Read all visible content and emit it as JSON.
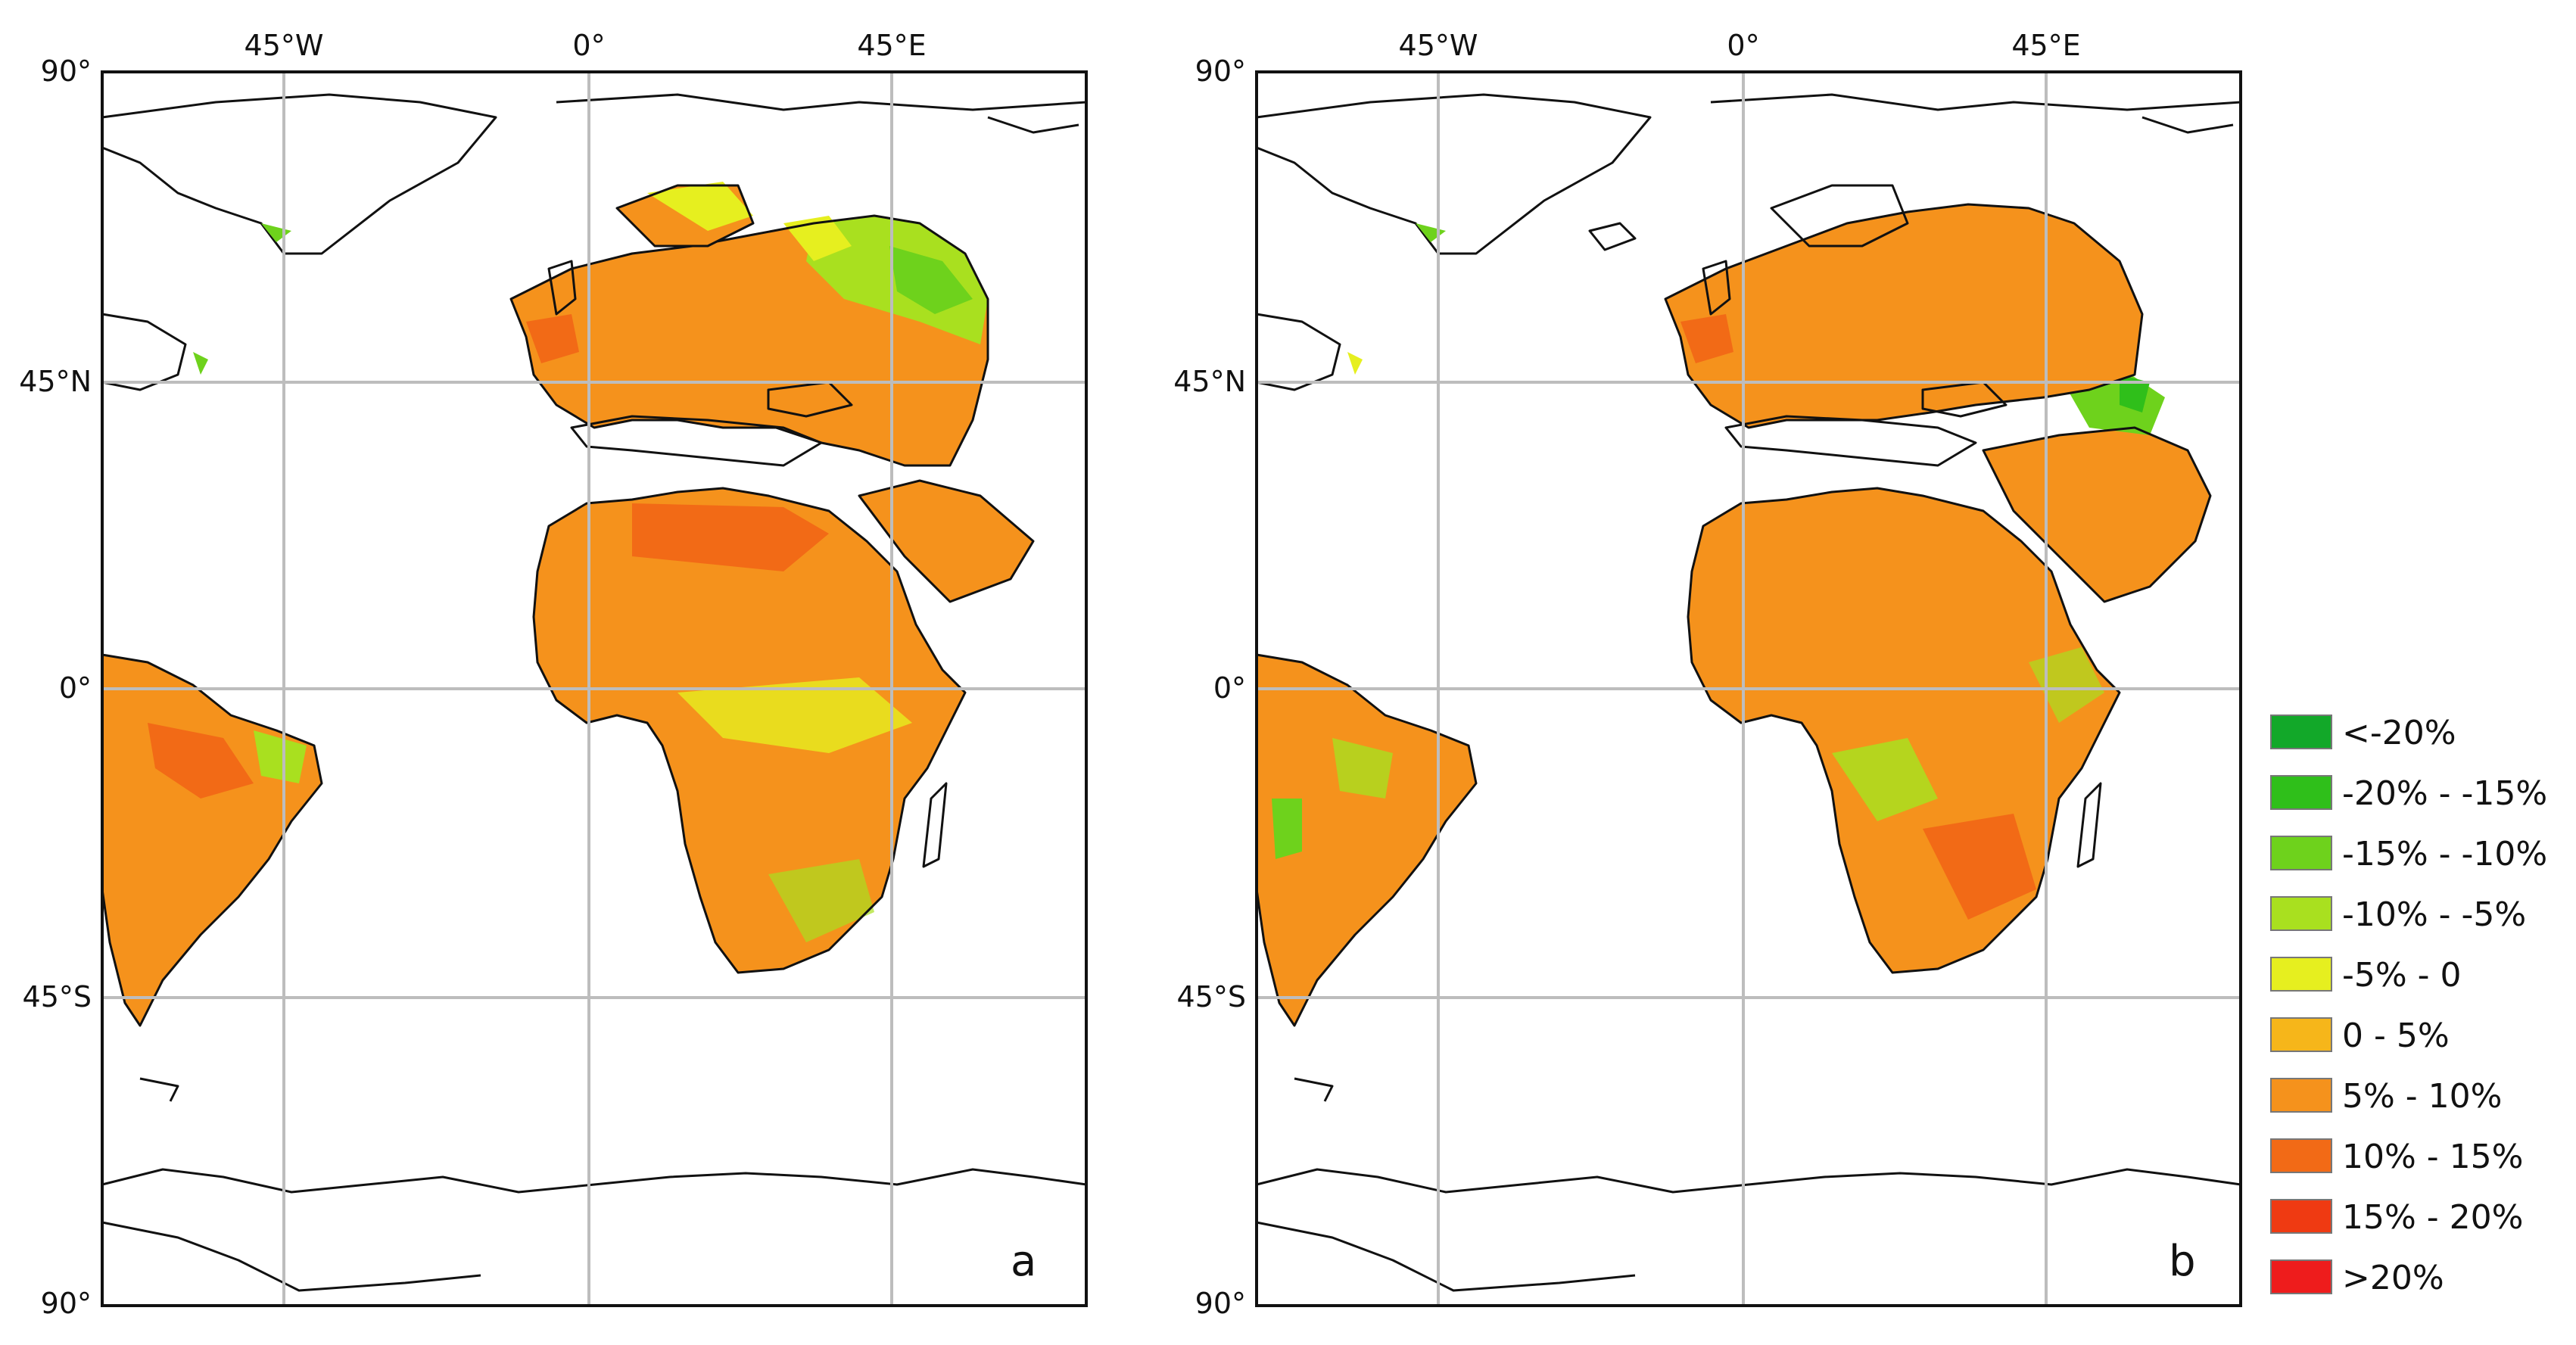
{
  "panels": [
    {
      "id": "a",
      "label": "a",
      "lon_ticks": [
        "45°W",
        "0°",
        "45°E"
      ],
      "lat_ticks": [
        "90°",
        "45°N",
        "0°",
        "45°S",
        "90°"
      ]
    },
    {
      "id": "b",
      "label": "b",
      "lon_ticks": [
        "45°W",
        "0°",
        "45°E"
      ],
      "lat_ticks": [
        "90°",
        "45°N",
        "0°",
        "45°S",
        "90°"
      ]
    }
  ],
  "legend": {
    "items": [
      {
        "label": "<-20%",
        "color": "#12a829"
      },
      {
        "label": "-20% - -15%",
        "color": "#2fbf1a"
      },
      {
        "label": "-15% - -10%",
        "color": "#6ed21c"
      },
      {
        "label": "-10% - -5%",
        "color": "#a9e01f"
      },
      {
        "label": "-5% - 0",
        "color": "#e6ef1f"
      },
      {
        "label": "0 - 5%",
        "color": "#f6b61a"
      },
      {
        "label": "5% - 10%",
        "color": "#f5921c"
      },
      {
        "label": "10% - 15%",
        "color": "#f26a16"
      },
      {
        "label": "15% - 20%",
        "color": "#ef3a12"
      },
      {
        "label": ">20%",
        "color": "#ee1c1c"
      }
    ]
  },
  "map_colors": {
    "land_base": "#f5921c",
    "land_warm": "#f26a16",
    "land_green": "#a9e01f",
    "land_yellow": "#e6ef1f",
    "coastline": "#111111",
    "graticule": "#bdbdbd"
  }
}
